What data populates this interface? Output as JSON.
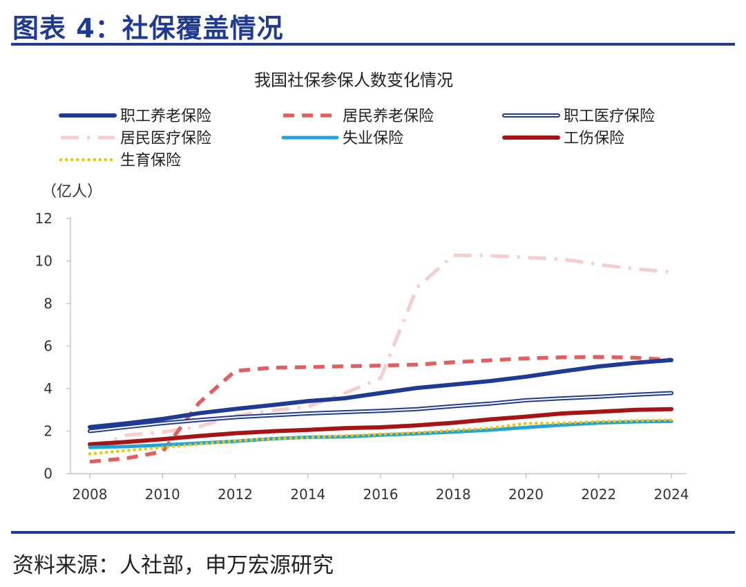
{
  "figure": {
    "title": "图表 4：社保覆盖情况",
    "source": "资料来源：人社部，申万宏源研究"
  },
  "colors": {
    "brand": "#1f3a93"
  },
  "chart_data": {
    "type": "line",
    "title": "我国社保参保人数变化情况",
    "ylabel": "（亿人）",
    "xlabel": "",
    "ylim": [
      0,
      12
    ],
    "yticks": [
      0,
      2,
      4,
      6,
      8,
      10,
      12
    ],
    "xticks": [
      2008,
      2010,
      2012,
      2014,
      2016,
      2018,
      2020,
      2022,
      2024
    ],
    "x": [
      2008,
      2009,
      2010,
      2011,
      2012,
      2013,
      2014,
      2015,
      2016,
      2017,
      2018,
      2019,
      2020,
      2021,
      2022,
      2023,
      2024
    ],
    "legend_position": "top",
    "series": [
      {
        "name": "职工养老保险",
        "style": "solid-thick",
        "color": "#1f3a93",
        "values": [
          2.19,
          2.36,
          2.57,
          2.84,
          3.04,
          3.22,
          3.41,
          3.54,
          3.79,
          4.03,
          4.19,
          4.35,
          4.56,
          4.81,
          5.04,
          5.21,
          5.34
        ]
      },
      {
        "name": "居民养老保险",
        "style": "dashed",
        "color": "#e06060",
        "values": [
          0.56,
          0.72,
          1.03,
          3.32,
          4.83,
          4.98,
          5.01,
          5.05,
          5.08,
          5.13,
          5.24,
          5.33,
          5.42,
          5.47,
          5.49,
          5.45,
          5.35
        ]
      },
      {
        "name": "职工医疗保险",
        "style": "double",
        "color": "#1f3a93",
        "values": [
          2.0,
          2.19,
          2.37,
          2.52,
          2.65,
          2.74,
          2.83,
          2.89,
          2.95,
          3.03,
          3.17,
          3.29,
          3.45,
          3.54,
          3.62,
          3.71,
          3.79
        ]
      },
      {
        "name": "居民医疗保险",
        "style": "dashdot",
        "color": "#f7cccc",
        "values": [
          1.18,
          1.8,
          1.95,
          2.21,
          2.72,
          2.96,
          3.15,
          3.77,
          4.49,
          8.74,
          10.27,
          10.25,
          10.17,
          10.09,
          9.83,
          9.63,
          9.47
        ]
      },
      {
        "name": "失业保险",
        "style": "solid",
        "color": "#1fa3d9",
        "values": [
          1.24,
          1.27,
          1.34,
          1.43,
          1.52,
          1.64,
          1.71,
          1.73,
          1.81,
          1.88,
          1.96,
          2.05,
          2.17,
          2.29,
          2.38,
          2.44,
          2.46
        ]
      },
      {
        "name": "工伤保险",
        "style": "solid-thick",
        "color": "#a51515",
        "values": [
          1.38,
          1.49,
          1.62,
          1.77,
          1.9,
          1.99,
          2.06,
          2.14,
          2.18,
          2.27,
          2.39,
          2.55,
          2.68,
          2.83,
          2.91,
          3.0,
          3.03
        ]
      },
      {
        "name": "生育保险",
        "style": "dotted",
        "color": "#f2c200",
        "values": [
          0.93,
          1.09,
          1.23,
          1.39,
          1.54,
          1.64,
          1.7,
          1.78,
          1.85,
          1.93,
          2.04,
          2.14,
          2.36,
          2.38,
          2.45,
          2.49,
          2.52
        ]
      }
    ]
  }
}
